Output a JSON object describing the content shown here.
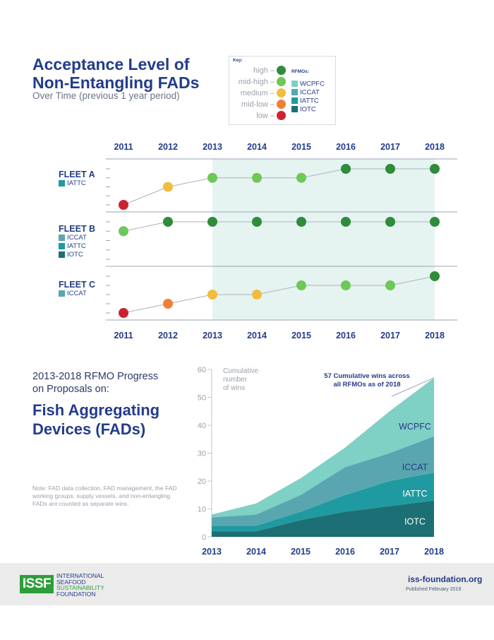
{
  "title_lines": [
    "Acceptance Level of",
    "Non-Entangling FADs"
  ],
  "subtitle": "Over Time (previous 1 year period)",
  "key": {
    "header": "Key:",
    "levels": [
      {
        "label": "high –",
        "color": "#2e8c3a"
      },
      {
        "label": "mid-high –",
        "color": "#6cc857"
      },
      {
        "label": "medium –",
        "color": "#f2bc3e"
      },
      {
        "label": "mid-low –",
        "color": "#f07f35"
      },
      {
        "label": "low –",
        "color": "#cc2230"
      }
    ],
    "rfmo_header": "RFMOs:",
    "rfmos": [
      {
        "label": "WCPFC",
        "color": "#7fd0c5"
      },
      {
        "label": "ICCAT",
        "color": "#5aa6b0"
      },
      {
        "label": "IATTC",
        "color": "#1f9aa0"
      },
      {
        "label": "IOTC",
        "color": "#1c6f74"
      }
    ]
  },
  "colors": {
    "accent": "#233c8b",
    "highlight_band": "#e6f4f1",
    "line": "#a9b0bf"
  },
  "chart_data": [
    {
      "type": "line",
      "years": [
        "2011",
        "2012",
        "2013",
        "2014",
        "2015",
        "2016",
        "2017",
        "2018"
      ],
      "highlight_years": [
        "2013",
        "2018"
      ],
      "fleets": [
        {
          "name": "FLEET A",
          "rfmos": [
            "IATTC"
          ],
          "levels": [
            "low",
            "medium",
            "mid-high",
            "mid-high",
            "mid-high",
            "high",
            "high",
            "high"
          ]
        },
        {
          "name": "FLEET B",
          "rfmos": [
            "ICCAT",
            "IATTC",
            "IOTC"
          ],
          "levels": [
            "mid-high",
            "high",
            "high",
            "high",
            "high",
            "high",
            "high",
            "high"
          ]
        },
        {
          "name": "FLEET C",
          "rfmos": [
            "ICCAT"
          ],
          "levels": [
            "low",
            "mid-low",
            "medium",
            "medium",
            "mid-high",
            "mid-high",
            "mid-high",
            "high"
          ]
        }
      ]
    },
    {
      "type": "area",
      "x": [
        "2013",
        "2014",
        "2015",
        "2016",
        "2017",
        "2018"
      ],
      "ylim": [
        0,
        60
      ],
      "yticks": [
        0,
        10,
        20,
        30,
        40,
        50,
        60
      ],
      "ylabel_lines": [
        "Cumulative",
        "number",
        "of wins"
      ],
      "annotation_lines": [
        "57 Cumulative wins across",
        "all RFMOs as of 2018"
      ],
      "series": [
        {
          "name": "IOTC",
          "values": [
            2,
            2,
            6,
            9,
            11,
            13
          ]
        },
        {
          "name": "IATTC",
          "values": [
            2,
            2,
            3,
            6,
            9,
            10
          ]
        },
        {
          "name": "ICCAT",
          "values": [
            3,
            4,
            6,
            10,
            10,
            13
          ]
        },
        {
          "name": "WCPFC",
          "values": [
            1,
            4,
            6,
            7,
            15,
            21
          ]
        }
      ],
      "total_2018": 57
    }
  ],
  "section2": {
    "sub_lines": [
      "2013-2018 RFMO Progress",
      "on Proposals on:"
    ],
    "title_lines": [
      "Fish Aggregating",
      "Devices (FADs)"
    ],
    "note": "Note: FAD data collection, FAD management, the FAD working groups, supply vessels, and non-entangling FADs are counted as separate wins."
  },
  "footer": {
    "logo_text": "ISSF",
    "org_lines": [
      "INTERNATIONAL",
      "SEAFOOD",
      "SUSTAINABILITY",
      "FOUNDATION"
    ],
    "url": "iss-foundation.org",
    "published": "Published February 2019"
  }
}
